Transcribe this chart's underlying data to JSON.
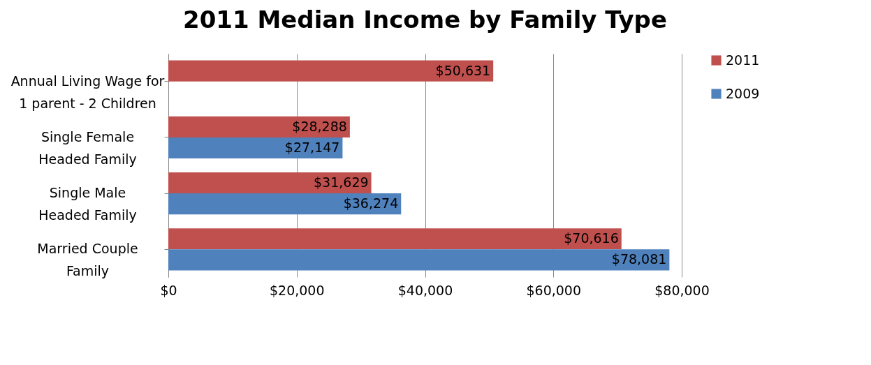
{
  "chart_data": {
    "type": "bar",
    "orientation": "horizontal",
    "title": "2011 Median Income by Family Type",
    "categories": [
      "Annual Living Wage for\n1 parent - 2 Children",
      "Single Female\nHeaded Family",
      "Single Male\nHeaded Family",
      "Married Couple\nFamily"
    ],
    "series": [
      {
        "name": "2011",
        "color": "#c0504d",
        "values": [
          50631,
          28288,
          31629,
          70616
        ],
        "value_labels": [
          "$50,631",
          "$28,288",
          "$31,629",
          "$70,616"
        ]
      },
      {
        "name": "2009",
        "color": "#4f81bd",
        "values": [
          null,
          27147,
          36274,
          78081
        ],
        "value_labels": [
          null,
          "$27,147",
          "$36,274",
          "$78,081"
        ]
      }
    ],
    "xlim": [
      0,
      80000
    ],
    "xticks": [
      {
        "value": 0,
        "label": "$0"
      },
      {
        "value": 20000,
        "label": "$20,000"
      },
      {
        "value": 40000,
        "label": "$40,000"
      },
      {
        "value": 60000,
        "label": "$60,000"
      },
      {
        "value": 80000,
        "label": "$80,000"
      }
    ],
    "grid": "x",
    "legend": "right"
  }
}
